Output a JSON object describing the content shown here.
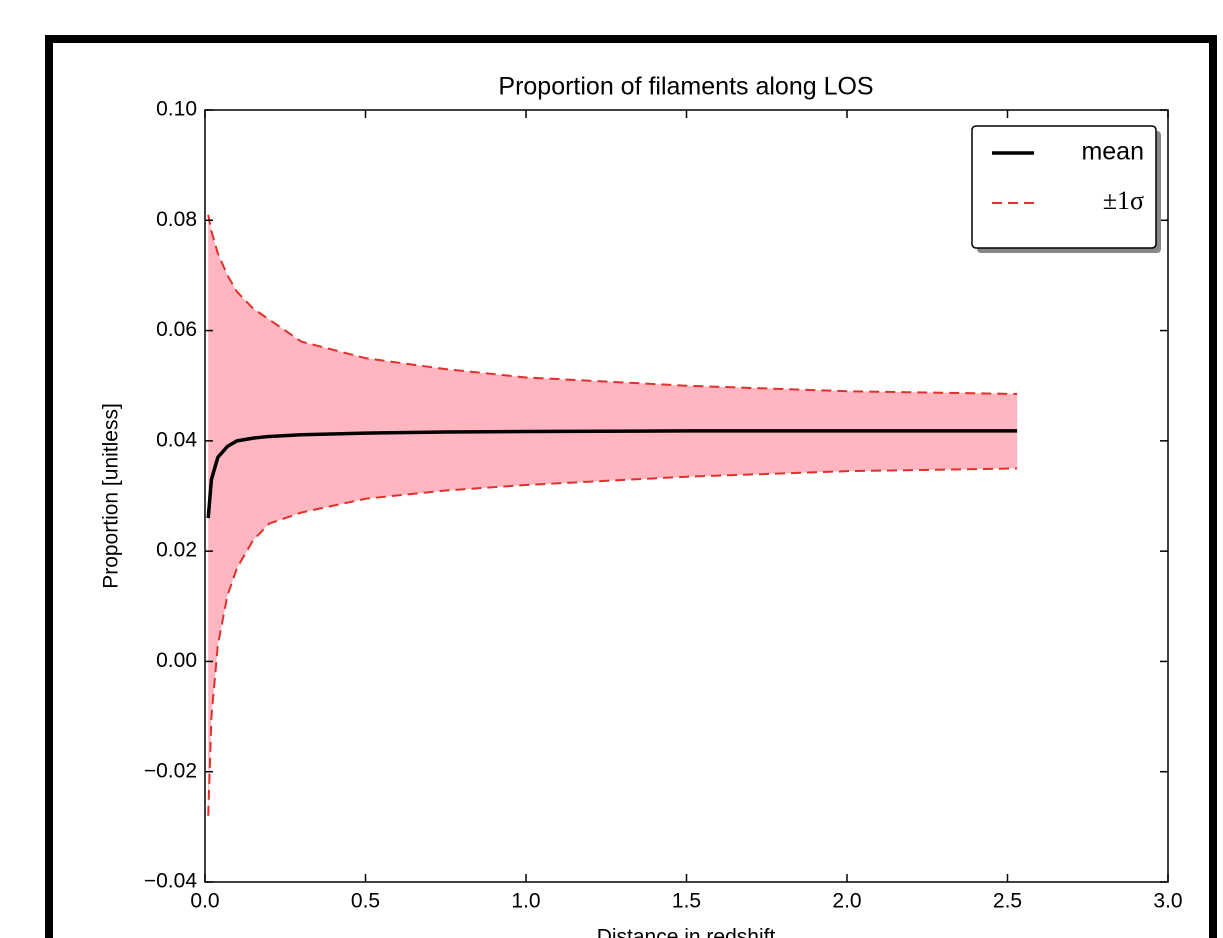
{
  "chart_data": {
    "type": "line",
    "title": "Proportion of filaments along LOS",
    "x_label": "Distance in redshift",
    "y_label": "Proportion [unitless]",
    "x": [
      0.01,
      0.02,
      0.04,
      0.07,
      0.1,
      0.15,
      0.2,
      0.3,
      0.5,
      0.75,
      1.0,
      1.5,
      2.0,
      2.53
    ],
    "series": [
      {
        "name": "mean",
        "color": "#000000",
        "dashed": false,
        "values": [
          0.026,
          0.033,
          0.037,
          0.039,
          0.04,
          0.0405,
          0.0408,
          0.0411,
          0.0414,
          0.0416,
          0.0417,
          0.0418,
          0.0418,
          0.0418
        ]
      },
      {
        "name": "±1σ",
        "color": "#e0302c",
        "dashed": true,
        "values": [
          0.081,
          0.078,
          0.074,
          0.07,
          0.067,
          0.064,
          0.062,
          0.058,
          0.055,
          0.053,
          0.0515,
          0.05,
          0.049,
          0.0485
        ]
      },
      {
        "color": "#e0302c",
        "dashed": true,
        "values": [
          -0.028,
          -0.01,
          0.003,
          0.012,
          0.017,
          0.022,
          0.025,
          0.027,
          0.0295,
          0.031,
          0.032,
          0.0335,
          0.0345,
          0.035
        ]
      }
    ],
    "band_color": "#ffb6c1",
    "xlim": [
      0,
      3
    ],
    "ylim": [
      -0.04,
      0.1
    ],
    "xticks": [
      {
        "value": 0,
        "label": "0.0"
      },
      0.5,
      {
        "value": 1,
        "label": "1.0"
      },
      1.5,
      {
        "value": 2,
        "label": "2.0"
      },
      2.5,
      {
        "value": 3,
        "label": "3.0"
      }
    ],
    "yticks": [
      {
        "value": -0.04,
        "label": "−0.04"
      },
      {
        "value": -0.02,
        "label": "−0.02"
      },
      {
        "value": 0,
        "label": "0.00"
      },
      0.02,
      0.04,
      0.06,
      0.08,
      {
        "value": 0.1,
        "label": "0.10"
      }
    ],
    "legend": "upper right",
    "grid": false
  }
}
